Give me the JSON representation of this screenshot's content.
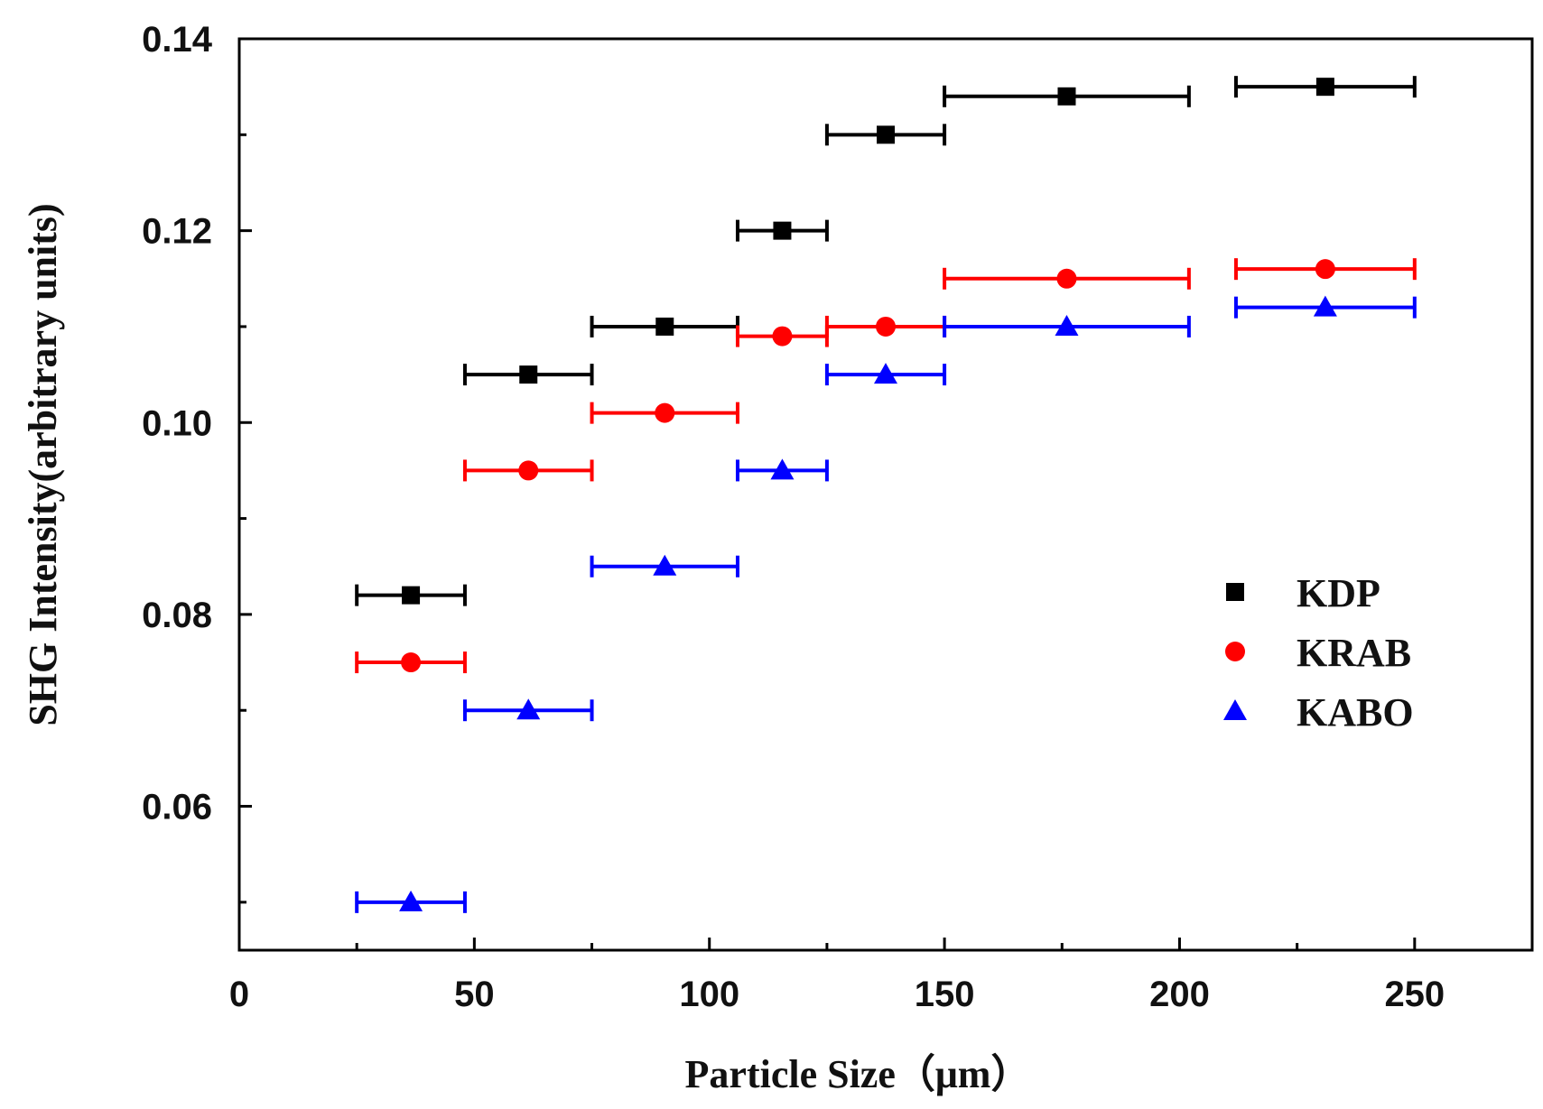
{
  "chart_data": {
    "type": "scatter",
    "title": "",
    "xlabel": "Particle Size（μm）",
    "ylabel": "SHG Intensity(arbitrary units)",
    "xlim": [
      0,
      275
    ],
    "ylim": [
      0.045,
      0.14
    ],
    "x_ticks": [
      0,
      50,
      100,
      150,
      200,
      250
    ],
    "x_tick_labels": [
      "0",
      "50",
      "100",
      "150",
      "200",
      "250"
    ],
    "x_minor_ticks": [
      25,
      75,
      125,
      175,
      225
    ],
    "y_ticks": [
      0.06,
      0.08,
      0.1,
      0.12,
      0.14
    ],
    "y_tick_labels": [
      "0.06",
      "0.08",
      "0.10",
      "0.12",
      "0.14"
    ],
    "y_minor_ticks": [
      0.05,
      0.07,
      0.09,
      0.11,
      0.13
    ],
    "grid": false,
    "legend_position": "right-middle",
    "series": [
      {
        "name": "KDP",
        "marker": "square",
        "color": "#000000",
        "points": [
          {
            "x": 36.5,
            "xmin": 25,
            "xmax": 48,
            "y": 0.082
          },
          {
            "x": 61.5,
            "xmin": 48,
            "xmax": 75,
            "y": 0.105
          },
          {
            "x": 90.5,
            "xmin": 75,
            "xmax": 106,
            "y": 0.11
          },
          {
            "x": 115.5,
            "xmin": 106,
            "xmax": 125,
            "y": 0.12
          },
          {
            "x": 137.5,
            "xmin": 125,
            "xmax": 150,
            "y": 0.13
          },
          {
            "x": 176,
            "xmin": 150,
            "xmax": 202,
            "y": 0.134
          },
          {
            "x": 231,
            "xmin": 212,
            "xmax": 250,
            "y": 0.135
          }
        ]
      },
      {
        "name": "KRAB",
        "marker": "circle",
        "color": "#ff0000",
        "points": [
          {
            "x": 36.5,
            "xmin": 25,
            "xmax": 48,
            "y": 0.075
          },
          {
            "x": 61.5,
            "xmin": 48,
            "xmax": 75,
            "y": 0.095
          },
          {
            "x": 90.5,
            "xmin": 75,
            "xmax": 106,
            "y": 0.101
          },
          {
            "x": 115.5,
            "xmin": 106,
            "xmax": 125,
            "y": 0.109
          },
          {
            "x": 137.5,
            "xmin": 125,
            "xmax": 150,
            "y": 0.11
          },
          {
            "x": 176,
            "xmin": 150,
            "xmax": 202,
            "y": 0.115
          },
          {
            "x": 231,
            "xmin": 212,
            "xmax": 250,
            "y": 0.116
          }
        ]
      },
      {
        "name": "KABO",
        "marker": "triangle",
        "color": "#0000ff",
        "points": [
          {
            "x": 36.5,
            "xmin": 25,
            "xmax": 48,
            "y": 0.05
          },
          {
            "x": 61.5,
            "xmin": 48,
            "xmax": 75,
            "y": 0.07
          },
          {
            "x": 90.5,
            "xmin": 75,
            "xmax": 106,
            "y": 0.085
          },
          {
            "x": 115.5,
            "xmin": 106,
            "xmax": 125,
            "y": 0.095
          },
          {
            "x": 137.5,
            "xmin": 125,
            "xmax": 150,
            "y": 0.105
          },
          {
            "x": 176,
            "xmin": 150,
            "xmax": 202,
            "y": 0.11
          },
          {
            "x": 231,
            "xmin": 212,
            "xmax": 250,
            "y": 0.112
          }
        ]
      }
    ]
  }
}
